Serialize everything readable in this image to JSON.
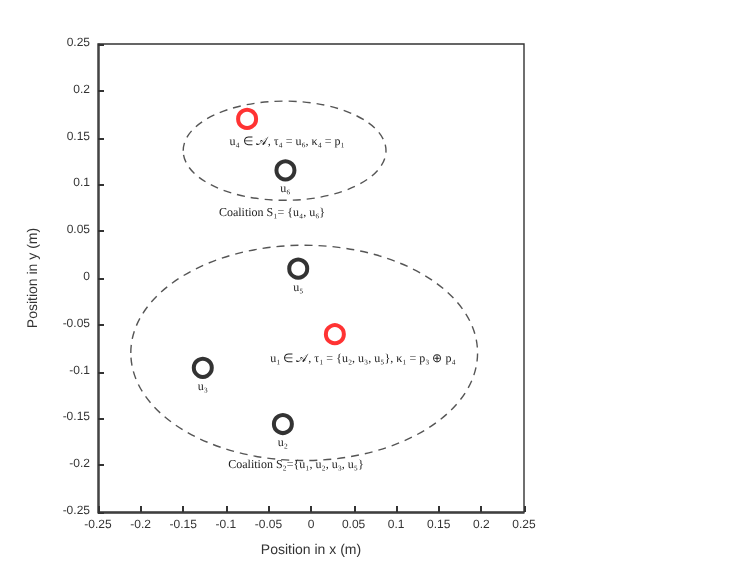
{
  "chart_data": {
    "type": "scatter",
    "xlabel": "Position in x (m)",
    "ylabel": "Position in y (m)",
    "x": [
      -0.075,
      -0.03,
      -0.015,
      0.028,
      -0.127,
      -0.033
    ],
    "values": [
      0.17,
      0.115,
      0.01,
      -0.06,
      -0.096,
      -0.156
    ],
    "colors": [
      "#ff0000",
      "#000000",
      "#000000",
      "#ff0000",
      "#000000",
      "#000000"
    ],
    "marker": "circle",
    "xlim": [
      -0.25,
      0.25
    ],
    "xticks": [
      -0.25,
      -0.2,
      -0.15,
      -0.1,
      -0.05,
      0,
      0.05,
      0.1,
      0.15,
      0.2,
      0.25
    ],
    "ylim": [
      -0.25,
      0.25
    ],
    "yticks": [
      -0.25,
      -0.2,
      -0.15,
      -0.1,
      -0.05,
      0,
      0.05,
      0.1,
      0.15,
      0.2,
      0.25
    ],
    "grid": false,
    "annotations": [
      {
        "text": "u₄ ∈ 𝒜, τ₄ = u₆, κ₄ = p₁",
        "x": -0.075,
        "y": 0.17
      },
      {
        "text": "u₆",
        "x": -0.03,
        "y": 0.115
      },
      "Coalition S₁= {u₄, u₆}",
      {
        "text": "u₅",
        "x": -0.015,
        "y": 0.01
      },
      {
        "text": "u₁ ∈ 𝒜, τ₁ = {u₂, u₃, u₅}, κ₁ = p₃ ⊕ p₄",
        "x": 0.028,
        "y": -0.06
      },
      {
        "text": "u₃",
        "x": -0.127,
        "y": -0.096
      },
      {
        "text": "u₂",
        "x": -0.033,
        "y": -0.156
      },
      "Coalition S₂={u₁, u₂, u₃, u₅}"
    ]
  }
}
